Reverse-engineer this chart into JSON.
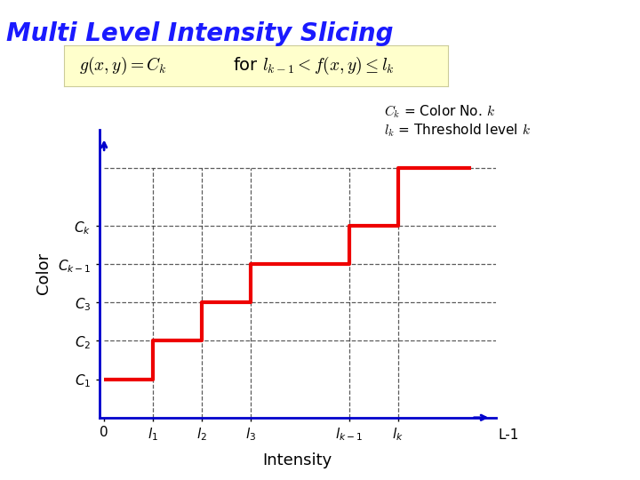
{
  "title": "Multi Level Intensity Slicing",
  "title_color": "#1a1aff",
  "title_fontsize": 20,
  "bg_color": "#ffffff",
  "red_separator_color": "#cc0000",
  "formula_box_color": "#ffffcc",
  "ylabel": "Color",
  "xlabel": "Intensity",
  "axis_color": "#0000cc",
  "step_x": [
    0,
    1,
    1,
    2,
    2,
    3,
    3,
    5,
    5,
    6,
    6,
    7.5
  ],
  "step_y": [
    1,
    1,
    2,
    2,
    3,
    3,
    4,
    4,
    5,
    5,
    6.5,
    6.5
  ],
  "dashed_x_positions": [
    1,
    2,
    3,
    5,
    6
  ],
  "dashed_y_positions": [
    2,
    3,
    4,
    5,
    6.5
  ],
  "ytick_labels": [
    "C_1",
    "C_2",
    "C_3",
    "C_{k-1}",
    "C_k"
  ],
  "ytick_values": [
    1,
    2,
    3,
    4,
    5
  ],
  "xtick_labels": [
    "0",
    "l_1",
    "l_2",
    "l_3",
    "l_{k-1}",
    "l_k"
  ],
  "xtick_values": [
    0,
    1,
    2,
    3,
    5,
    6
  ],
  "xlim": [
    -0.1,
    8.0
  ],
  "ylim": [
    0,
    7.5
  ],
  "dashed_color": "#333333",
  "step_color": "#ee0000",
  "step_linewidth": 3.0,
  "annotation_ck": "$C_k$ = Color No. $k$",
  "annotation_lk": "$l_k$ = Threshold level $k$"
}
